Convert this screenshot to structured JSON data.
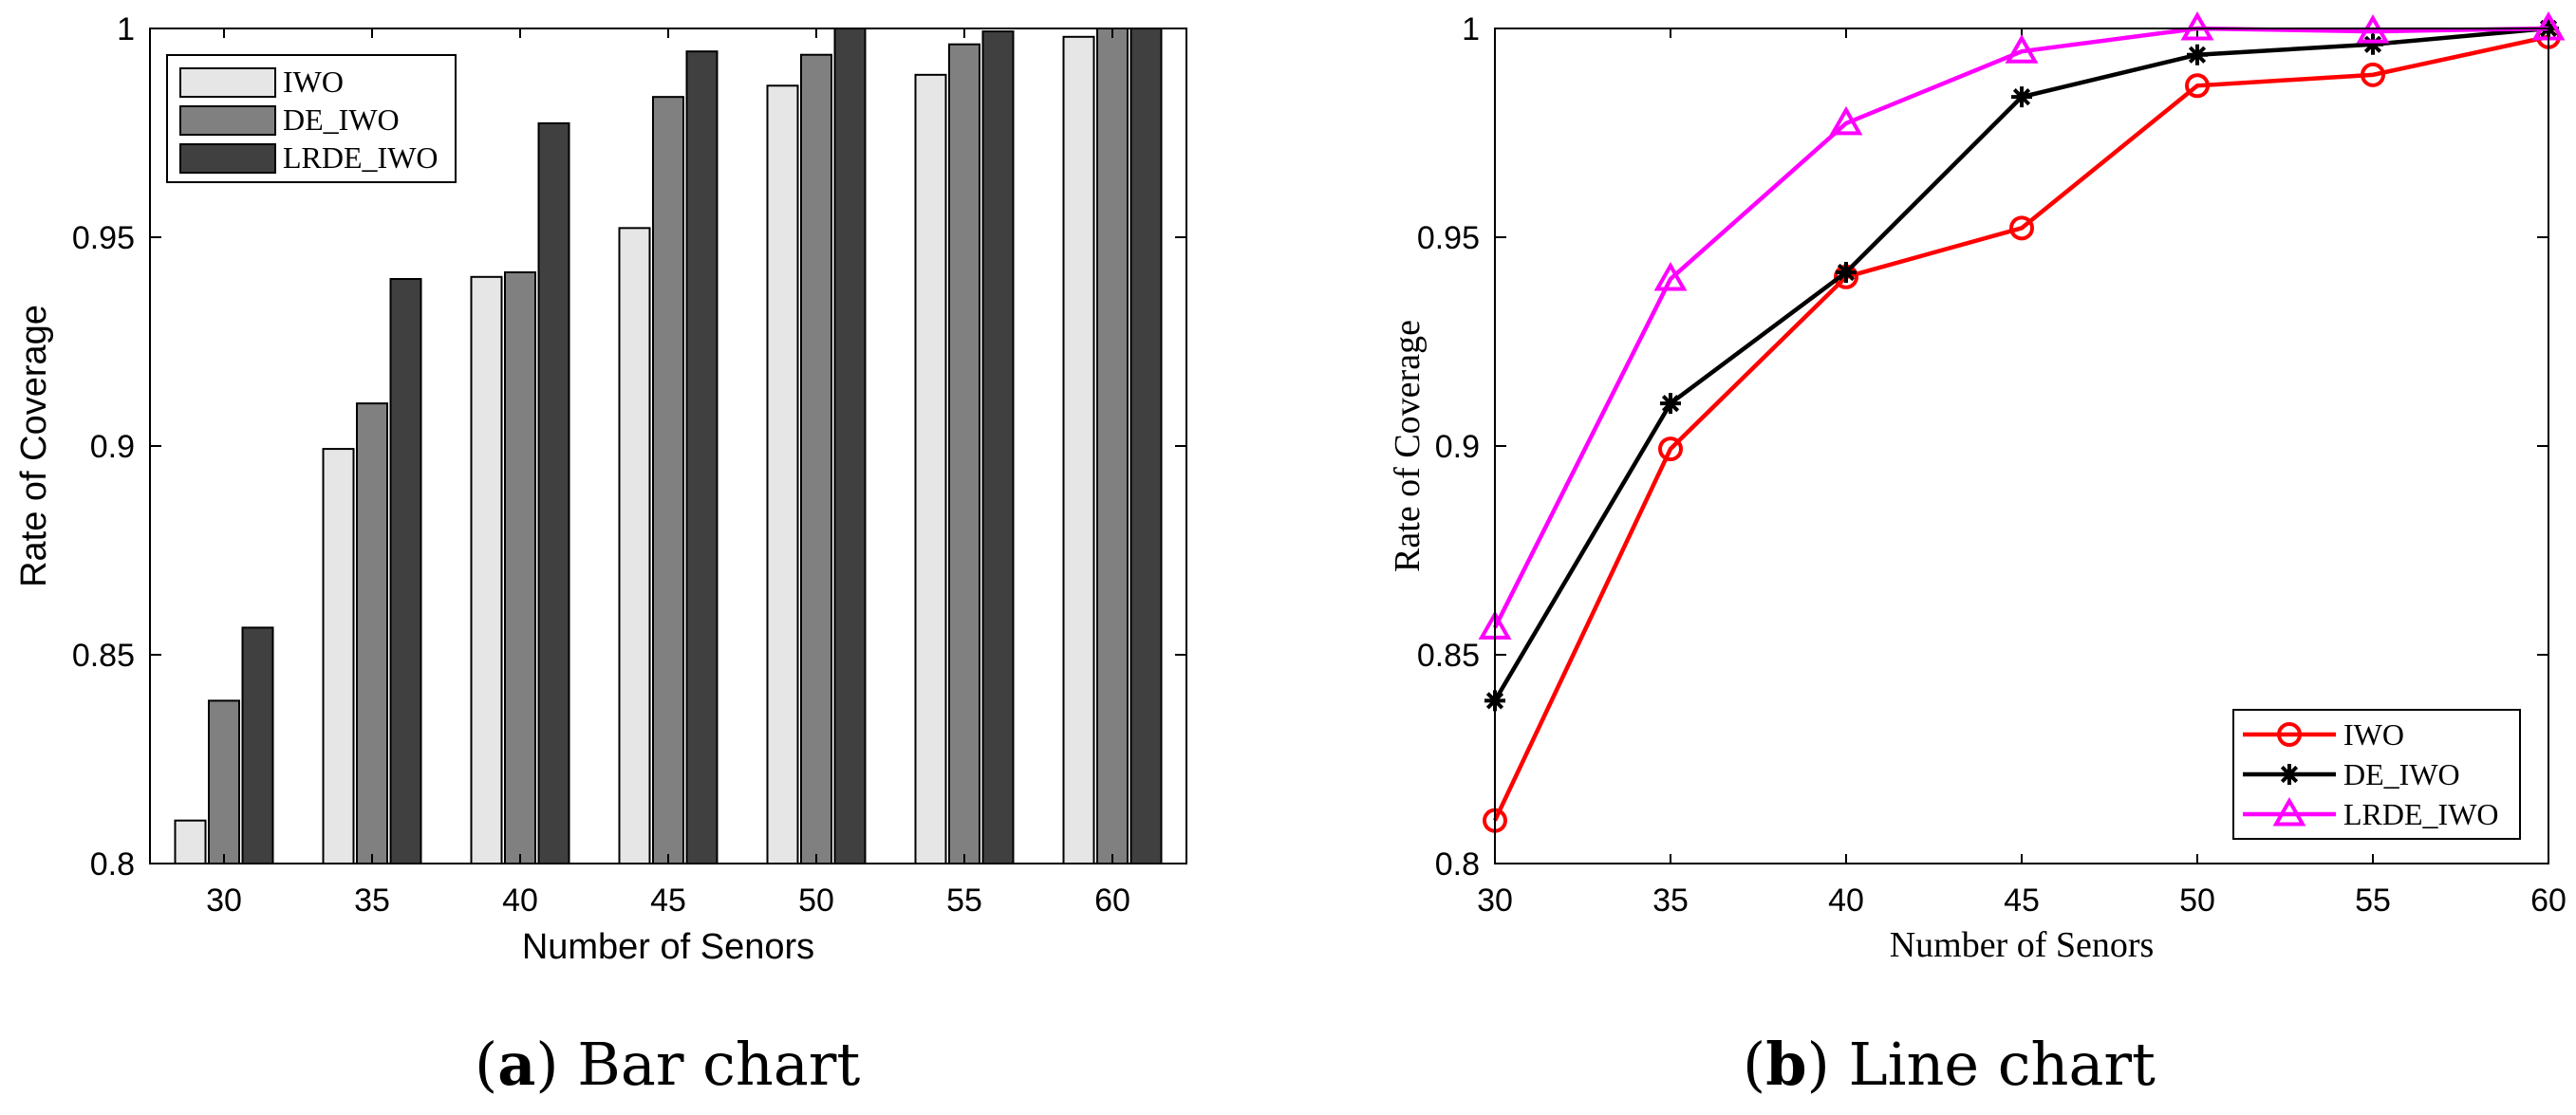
{
  "chart_data": [
    {
      "type": "bar",
      "panel": "a",
      "categories": [
        "30",
        "35",
        "40",
        "45",
        "50",
        "55",
        "60"
      ],
      "series": [
        {
          "name": "IWO",
          "color": "#e6e6e6",
          "values": [
            0.8103,
            0.8993,
            0.9405,
            0.9522,
            0.9863,
            0.9889,
            0.998
          ]
        },
        {
          "name": "DE_IWO",
          "color": "#808080",
          "values": [
            0.839,
            0.9102,
            0.9416,
            0.9836,
            0.9937,
            0.9962,
            1.0
          ]
        },
        {
          "name": "LRDE_IWO",
          "color": "#404040",
          "values": [
            0.8565,
            0.94,
            0.9773,
            0.9945,
            1.0,
            0.9993,
            1.0
          ]
        }
      ],
      "xlabel": "Number of Senors",
      "ylabel": "Rate of Coverage",
      "ylim": [
        0.8,
        1.0
      ],
      "yticks": [
        "0.8",
        "0.85",
        "0.9",
        "0.95",
        "1"
      ],
      "legend": "top-left",
      "grid": false
    },
    {
      "type": "line",
      "panel": "b",
      "x": [
        30,
        35,
        40,
        45,
        50,
        55,
        60
      ],
      "xticks": [
        "30",
        "35",
        "40",
        "45",
        "50",
        "55",
        "60"
      ],
      "series": [
        {
          "name": "IWO",
          "color": "#ff0000",
          "marker": "circle",
          "values": [
            0.8103,
            0.8993,
            0.9405,
            0.9522,
            0.9863,
            0.9889,
            0.998
          ]
        },
        {
          "name": "DE_IWO",
          "color": "#000000",
          "marker": "star",
          "values": [
            0.839,
            0.9102,
            0.9416,
            0.9836,
            0.9937,
            0.9962,
            1.0
          ]
        },
        {
          "name": "LRDE_IWO",
          "color": "#ff00ff",
          "marker": "triangle",
          "values": [
            0.8565,
            0.94,
            0.9773,
            0.9945,
            1.0,
            0.9993,
            1.0
          ]
        }
      ],
      "xlabel": "Number of Senors",
      "ylabel": "Rate of Coverage",
      "xlim": [
        30,
        60
      ],
      "ylim": [
        0.8,
        1.0
      ],
      "yticks": [
        "0.8",
        "0.85",
        "0.9",
        "0.95",
        "1"
      ],
      "legend": "bottom-right",
      "grid": false
    }
  ],
  "captions": {
    "a": {
      "letter": "a",
      "text": "Bar chart"
    },
    "b": {
      "letter": "b",
      "text": "Line chart"
    }
  }
}
